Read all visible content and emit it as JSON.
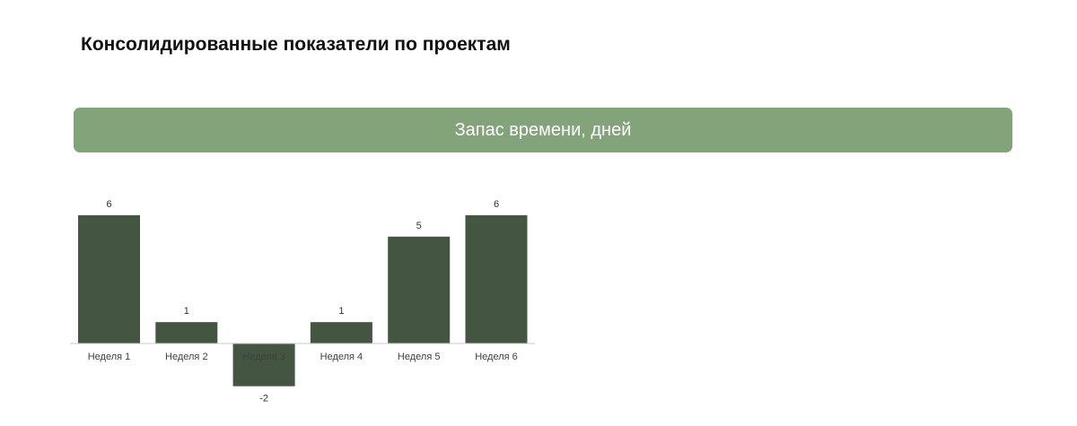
{
  "page": {
    "title": "Консолидированные показатели по проектам"
  },
  "banner": {
    "label": "Запас времени, дней",
    "color": "#83a47a"
  },
  "chart_data": {
    "type": "bar",
    "title": "Запас времени, дней",
    "categories": [
      "Неделя 1",
      "Неделя 2",
      "Неделя 3",
      "Неделя 4",
      "Неделя 5",
      "Неделя 6"
    ],
    "values": [
      6,
      1,
      -2,
      1,
      5,
      6
    ],
    "data_labels": [
      "6",
      "1",
      "-2",
      "1",
      "5",
      "6"
    ],
    "xlabel": "",
    "ylabel": "",
    "grid": false,
    "legend": "none",
    "bar_color": "#445542",
    "axis_color": "#c8c8c8"
  }
}
